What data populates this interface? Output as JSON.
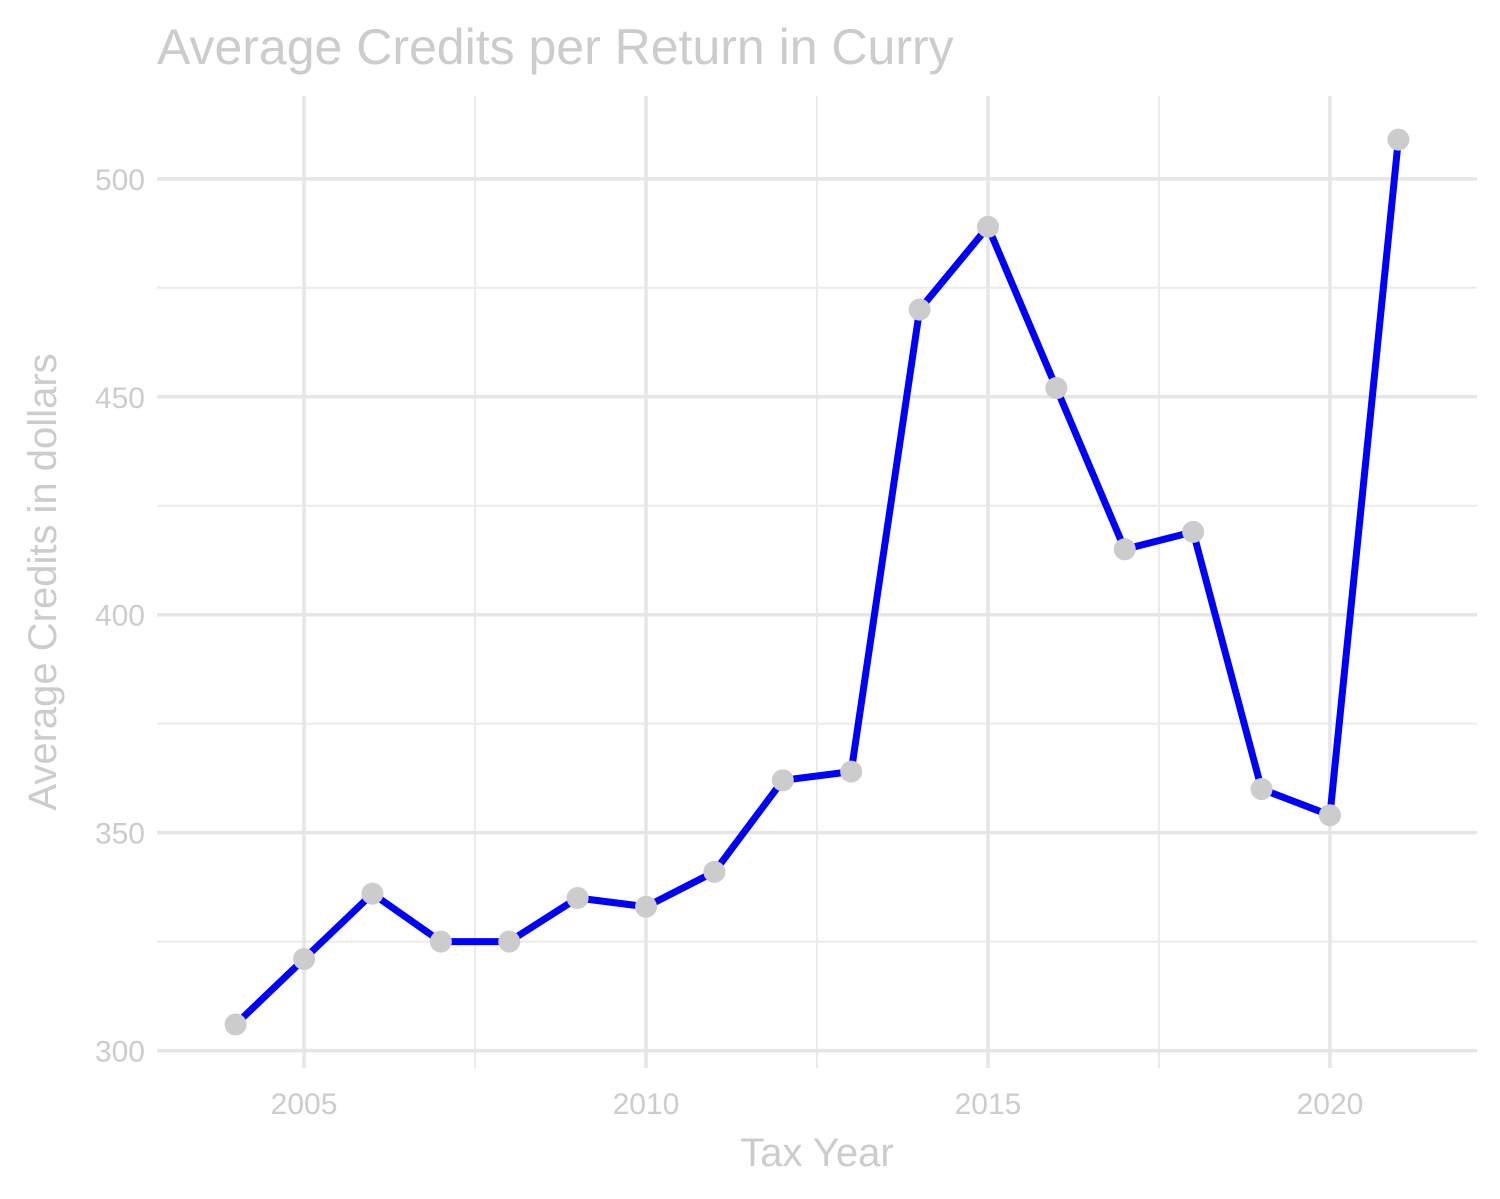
{
  "chart_data": {
    "type": "line",
    "title": "Average Credits per Return in Curry",
    "xlabel": "Tax Year",
    "ylabel": "Average Credits in dollars",
    "x": [
      2004,
      2005,
      2006,
      2007,
      2008,
      2009,
      2010,
      2011,
      2012,
      2013,
      2014,
      2015,
      2016,
      2017,
      2018,
      2019,
      2020,
      2021
    ],
    "series": [
      {
        "values": [
          306,
          321,
          336,
          325,
          325,
          335,
          333,
          341,
          362,
          364,
          470,
          489,
          452,
          415,
          419,
          360,
          354,
          509
        ]
      }
    ],
    "xlim": [
      2002.85,
      2022.15
    ],
    "ylim": [
      296,
      519
    ],
    "x_ticks": [
      2005,
      2010,
      2015,
      2020
    ],
    "y_ticks": [
      300,
      350,
      400,
      450,
      500
    ],
    "grid": true,
    "legend": "none",
    "colors": {
      "line": "#0000ff",
      "points": "#cccccc",
      "text": "#cccccc",
      "grid": "#e6e6e6",
      "background": "#ffffff"
    }
  }
}
